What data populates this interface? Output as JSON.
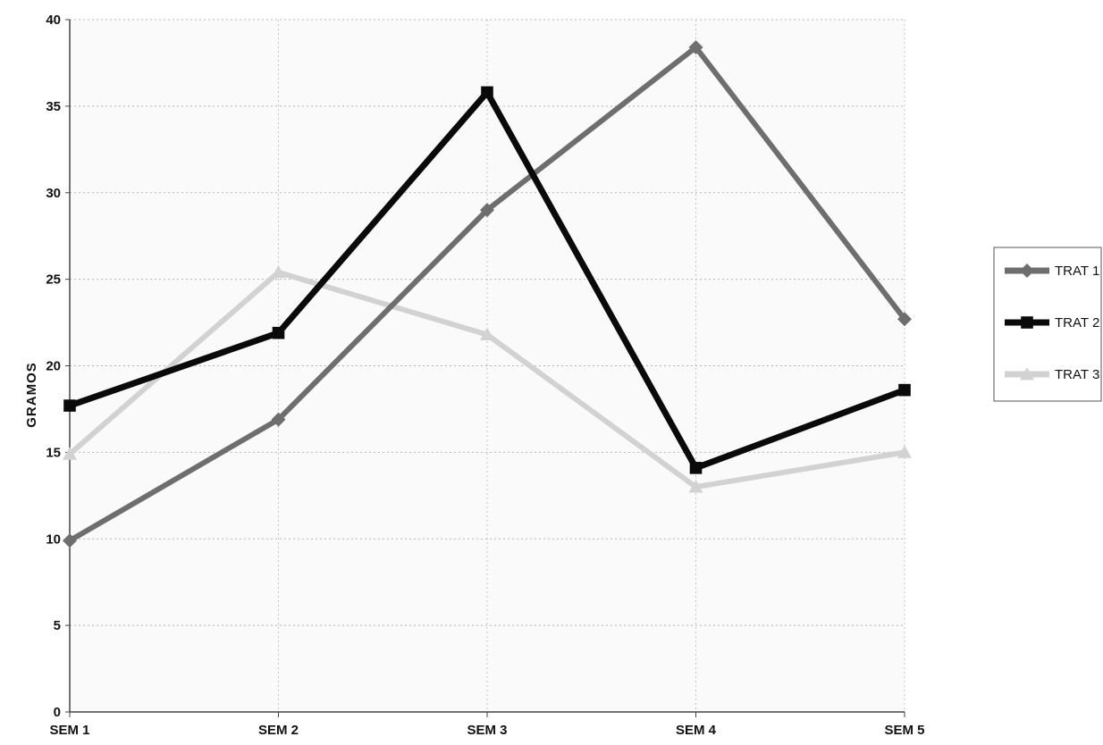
{
  "chart_data": {
    "type": "line",
    "ylabel": "GRAMOS",
    "categories": [
      "SEM 1",
      "SEM 2",
      "SEM 3",
      "SEM 4",
      "SEM 5"
    ],
    "ylim": [
      0,
      40
    ],
    "yticks": [
      0,
      5,
      10,
      15,
      20,
      25,
      30,
      35,
      40
    ],
    "grid": true,
    "legend_position": "right",
    "series": [
      {
        "name": "TRAT 1",
        "values": [
          9.9,
          16.9,
          29.0,
          38.4,
          22.7
        ],
        "color": "#6e6e6e",
        "marker": "diamond"
      },
      {
        "name": "TRAT 2",
        "values": [
          17.7,
          21.9,
          35.8,
          14.1,
          18.6
        ],
        "color": "#0a0a0a",
        "marker": "square"
      },
      {
        "name": "TRAT 3",
        "values": [
          14.9,
          25.4,
          21.8,
          13.0,
          15.0
        ],
        "color": "#d2d2d2",
        "marker": "triangle"
      }
    ]
  }
}
